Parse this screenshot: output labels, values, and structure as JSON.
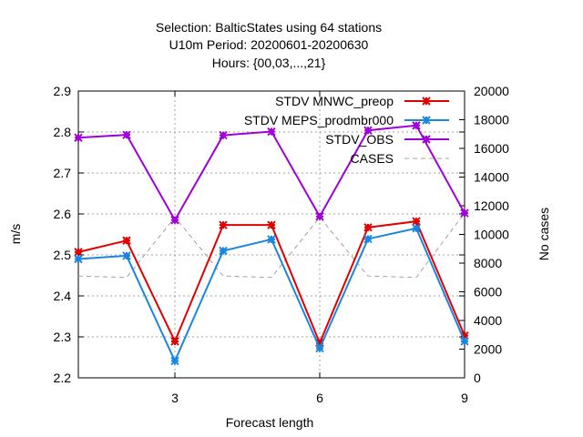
{
  "chart_data": {
    "type": "line",
    "title_lines": [
      "Selection: BalticStates using    64 stations",
      "U10m   Period: 20200601-20200630",
      "Hours: {00,03,...,21}"
    ],
    "xlabel": "Forecast length",
    "ylabel": "m/s",
    "y2label": "No cases",
    "xlim": [
      1,
      9
    ],
    "ylim": [
      2.2,
      2.9
    ],
    "y2lim": [
      0,
      20000
    ],
    "x_ticks": [
      3,
      6,
      9
    ],
    "y_ticks": [
      2.2,
      2.3,
      2.4,
      2.5,
      2.6,
      2.7,
      2.8,
      2.9
    ],
    "y2_ticks": [
      0,
      2000,
      4000,
      6000,
      8000,
      10000,
      12000,
      14000,
      16000,
      18000,
      20000
    ],
    "grid": true,
    "legend_position": "top-right",
    "x": [
      1,
      2,
      3,
      4,
      5,
      6,
      7,
      8,
      9
    ],
    "series": [
      {
        "name": "STDV MNWC_preop",
        "axis": "y",
        "color": "#e00000",
        "marker": "x",
        "values": [
          2.507,
          2.535,
          2.289,
          2.573,
          2.573,
          2.285,
          2.567,
          2.582,
          2.303
        ]
      },
      {
        "name": "STDV MEPS_prodmbr000",
        "axis": "y",
        "color": "#1a86e0",
        "marker": "x",
        "values": [
          2.49,
          2.498,
          2.241,
          2.51,
          2.538,
          2.272,
          2.539,
          2.565,
          2.289
        ]
      },
      {
        "name": "STDV_OBS",
        "axis": "y",
        "color": "#a000d8",
        "marker": "x",
        "values": [
          2.786,
          2.793,
          2.585,
          2.792,
          2.801,
          2.594,
          2.804,
          2.816,
          2.602
        ]
      },
      {
        "name": "CASES",
        "axis": "y2",
        "color": "#a0a0a0",
        "dashed": true,
        "values": [
          7100,
          7000,
          11200,
          7100,
          7000,
          11200,
          7100,
          7000,
          11500
        ]
      }
    ]
  }
}
